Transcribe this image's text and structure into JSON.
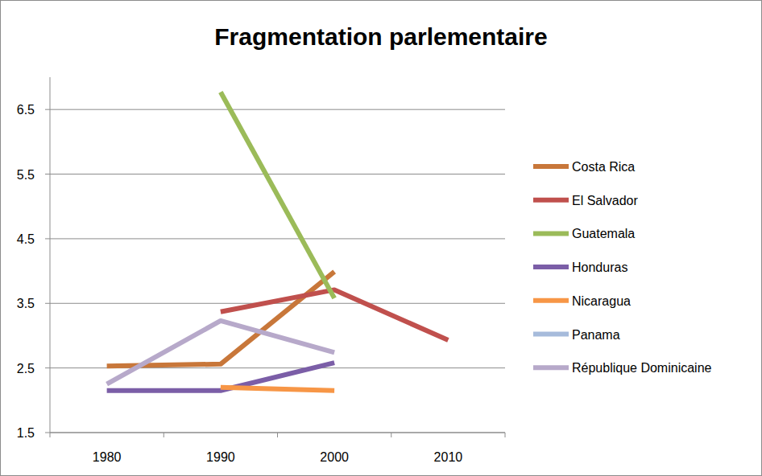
{
  "chart_data": {
    "type": "line",
    "title": "Fragmentation parlementaire",
    "categories": [
      "1980",
      "1990",
      "2000",
      "2010"
    ],
    "series": [
      {
        "name": "Costa Rica",
        "color": "#c8773a",
        "values": [
          2.53,
          2.56,
          3.99,
          null
        ]
      },
      {
        "name": "El Salvador",
        "color": "#c0504d",
        "values": [
          null,
          3.37,
          3.71,
          2.93
        ]
      },
      {
        "name": "Guatemala",
        "color": "#9bbb59",
        "values": [
          null,
          6.77,
          3.58,
          null
        ]
      },
      {
        "name": "Honduras",
        "color": "#7b5ea7",
        "values": [
          2.15,
          2.15,
          2.58,
          null
        ]
      },
      {
        "name": "Nicaragua",
        "color": "#f79646",
        "values": [
          null,
          2.2,
          2.15,
          null
        ]
      },
      {
        "name": "Panama",
        "color": "#a6bbdb",
        "values": [
          null,
          null,
          null,
          null
        ]
      },
      {
        "name": "République Dominicaine",
        "color": "#b7a9ca",
        "values": [
          2.25,
          3.23,
          2.74,
          null
        ]
      }
    ],
    "ylim": [
      1.5,
      7.0
    ],
    "yticks": [
      1.5,
      2.5,
      3.5,
      4.5,
      5.5,
      6.5
    ],
    "grid": true,
    "legend": "right"
  }
}
